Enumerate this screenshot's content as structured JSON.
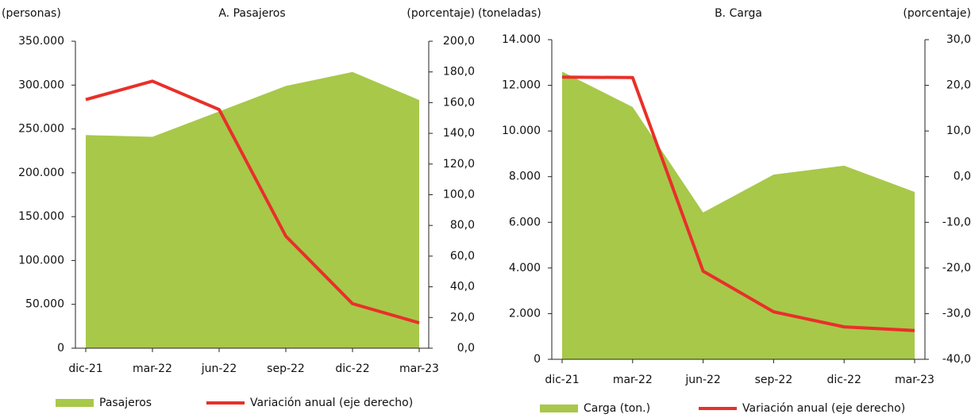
{
  "chart_data": [
    {
      "type": "combo",
      "title": "A. Pasajeros",
      "y_label": "(personas)",
      "y2_label": "(porcentaje)",
      "categories": [
        "dic-21",
        "mar-22",
        "jun-22",
        "sep-22",
        "dic-22",
        "mar-23"
      ],
      "series": [
        {
          "name": "Pasajeros",
          "color": "#a8c84a",
          "kind": "area",
          "values": [
            243000,
            241000,
            270000,
            299000,
            315000,
            283000
          ]
        },
        {
          "name": "Variación anual (eje derecho)",
          "color": "#e8302a",
          "kind": "line",
          "axis": "y2",
          "values": [
            162,
            174,
            155.5,
            73,
            29,
            16.5
          ]
        }
      ],
      "ylim": [
        0,
        350000
      ],
      "yticks": [
        0,
        {
          "value": 50000,
          "label": "50.000"
        },
        {
          "value": 100000,
          "label": "100.000"
        },
        {
          "value": 150000,
          "label": "150.000"
        },
        {
          "value": 200000,
          "label": "200.000"
        },
        {
          "value": 250000,
          "label": "250.000"
        },
        {
          "value": 300000,
          "label": "300.000"
        },
        {
          "value": 350000,
          "label": "350.000"
        }
      ],
      "y2lim": [
        0,
        200
      ],
      "y2ticks": [
        {
          "value": 0,
          "label": "0,0"
        },
        {
          "value": 20,
          "label": "20,0"
        },
        {
          "value": 40,
          "label": "40,0"
        },
        {
          "value": 60,
          "label": "60,0"
        },
        {
          "value": 80,
          "label": "80,0"
        },
        {
          "value": 100,
          "label": "100,0"
        },
        {
          "value": 120,
          "label": "120,0"
        },
        {
          "value": 140,
          "label": "140,0"
        },
        {
          "value": 160,
          "label": "160,0"
        },
        {
          "value": 180,
          "label": "180,0"
        },
        {
          "value": 200,
          "label": "200,0"
        }
      ]
    },
    {
      "type": "combo",
      "title": "B. Carga",
      "y_label": "(toneladas)",
      "y2_label": "(porcentaje)",
      "categories": [
        "dic-21",
        "mar-22",
        "jun-22",
        "sep-22",
        "dic-22",
        "mar-23"
      ],
      "series": [
        {
          "name": "Carga (ton.)",
          "color": "#a8c84a",
          "kind": "area",
          "values": [
            12600,
            11050,
            6430,
            8090,
            8480,
            7330
          ]
        },
        {
          "name": "Variación anual (eje derecho)",
          "color": "#e8302a",
          "kind": "line",
          "axis": "y2",
          "values": [
            21.8,
            21.7,
            -20.7,
            -29.6,
            -32.9,
            -33.7
          ]
        }
      ],
      "ylim": [
        0,
        14000
      ],
      "yticks": [
        0,
        {
          "value": 2000,
          "label": "2.000"
        },
        {
          "value": 4000,
          "label": "4.000"
        },
        {
          "value": 6000,
          "label": "6.000"
        },
        {
          "value": 8000,
          "label": "8.000"
        },
        {
          "value": 10000,
          "label": "10.000"
        },
        {
          "value": 12000,
          "label": "12.000"
        },
        {
          "value": 14000,
          "label": "14.000"
        }
      ],
      "y2lim": [
        -40,
        30
      ],
      "y2ticks": [
        {
          "value": -40,
          "label": "-40,0"
        },
        {
          "value": -30,
          "label": "-30,0"
        },
        {
          "value": -20,
          "label": "-20,0"
        },
        {
          "value": -10,
          "label": "-10,0"
        },
        {
          "value": 0,
          "label": "0,0"
        },
        {
          "value": 10,
          "label": "10,0"
        },
        {
          "value": 20,
          "label": "20,0"
        },
        {
          "value": 30,
          "label": "30,0"
        }
      ]
    }
  ]
}
